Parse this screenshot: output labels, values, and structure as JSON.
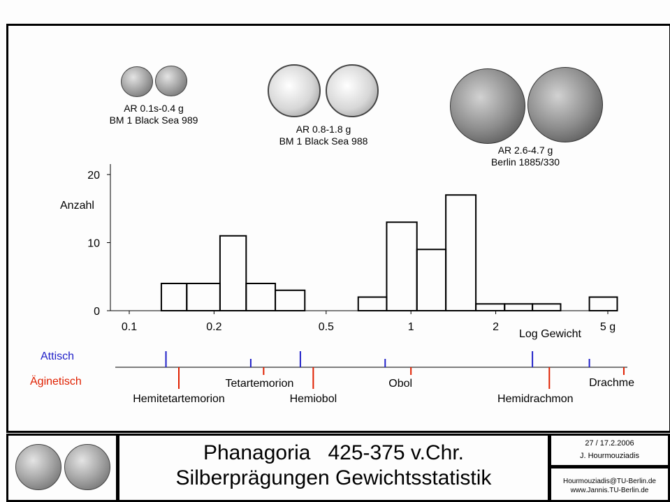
{
  "chart_data": {
    "type": "bar",
    "x_scale": "log",
    "xlabel": "Log Gewicht",
    "ylabel": "Anzahl",
    "xlim": [
      0.085,
      5.6
    ],
    "ylim": [
      0,
      21
    ],
    "x_ticks": [
      {
        "value": 0.1,
        "label": "0.1"
      },
      {
        "value": 0.2,
        "label": "0.2"
      },
      {
        "value": 0.5,
        "label": "0.5"
      },
      {
        "value": 1,
        "label": "1"
      },
      {
        "value": 2,
        "label": "2"
      },
      {
        "value": 5,
        "label": "5 g"
      }
    ],
    "y_ticks": [
      {
        "value": 0,
        "label": "0"
      },
      {
        "value": 10,
        "label": "10"
      },
      {
        "value": 20,
        "label": "20"
      }
    ],
    "bins": [
      {
        "x0": 0.13,
        "x1": 0.16,
        "count": 4
      },
      {
        "x0": 0.16,
        "x1": 0.21,
        "count": 4
      },
      {
        "x0": 0.21,
        "x1": 0.26,
        "count": 11
      },
      {
        "x0": 0.26,
        "x1": 0.33,
        "count": 4
      },
      {
        "x0": 0.33,
        "x1": 0.42,
        "count": 3
      },
      {
        "x0": 0.65,
        "x1": 0.82,
        "count": 2
      },
      {
        "x0": 0.82,
        "x1": 1.05,
        "count": 13
      },
      {
        "x0": 1.05,
        "x1": 1.33,
        "count": 9
      },
      {
        "x0": 1.33,
        "x1": 1.7,
        "count": 17
      },
      {
        "x0": 1.7,
        "x1": 2.15,
        "count": 1
      },
      {
        "x0": 2.15,
        "x1": 2.7,
        "count": 1
      },
      {
        "x0": 2.7,
        "x1": 3.4,
        "count": 1
      },
      {
        "x0": 4.3,
        "x1": 5.4,
        "count": 2
      }
    ],
    "denominations": {
      "attic_label": "Attisch",
      "aeginetic_label": "Äginetisch",
      "attic_color": "#2020c8",
      "aeginetic_color": "#e02000",
      "attic_weights": [
        0.135,
        0.27,
        0.405,
        0.81,
        2.7,
        4.3
      ],
      "aeginetic_weights": [
        0.15,
        0.3,
        0.45,
        1.0,
        3.1,
        5.7
      ],
      "names": [
        "Hemitetartemorion",
        "Tetartemorion",
        "Hemiobol",
        "Obol",
        "Hemidrachmon",
        "Drachme"
      ]
    }
  },
  "coin_captions": [
    {
      "line1": "AR 0.1s-0.4 g",
      "line2": "BM 1 Black Sea 989"
    },
    {
      "line1": "AR 0.8-1.8 g",
      "line2": "BM 1 Black Sea 988"
    },
    {
      "line1": "AR 2.6-4.7 g",
      "line2": "Berlin 1885/330"
    }
  ],
  "footer": {
    "title_line1": "Phanagoria   425-375 v.Chr.",
    "title_line2": "Silberprägungen Gewichtsstatistik",
    "date": "27 / 17.2.2006",
    "author": "J. Hourmouziadis",
    "email": "Hourmouziadis@TU-Berlin.de",
    "website": "www.Jannis.TU-Berlin.de"
  }
}
